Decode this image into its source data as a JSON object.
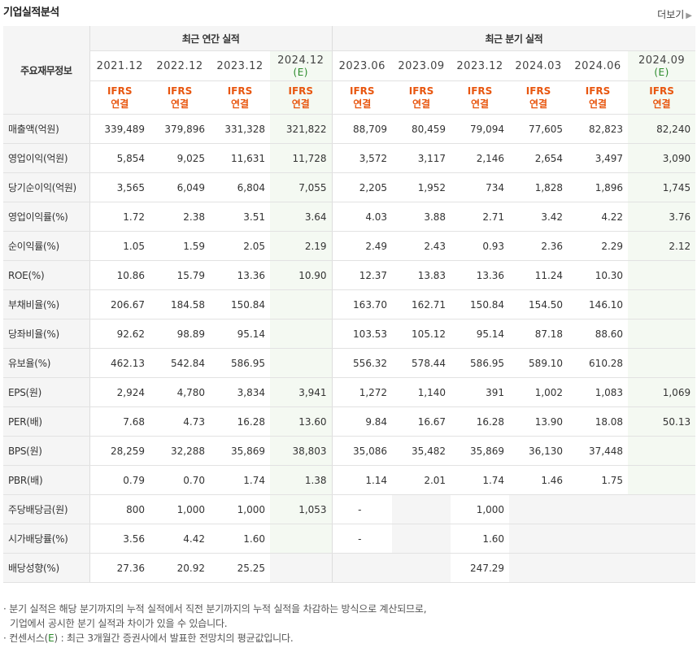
{
  "header": {
    "title": "기업실적분석",
    "more": "더보기"
  },
  "table": {
    "corner": "주요재무정보",
    "group_annual": "최근 연간 실적",
    "group_quarter": "최근 분기 실적",
    "periods": [
      {
        "p": "2021.12",
        "e": ""
      },
      {
        "p": "2022.12",
        "e": ""
      },
      {
        "p": "2023.12",
        "e": ""
      },
      {
        "p": "2024.12",
        "e": "(E)"
      },
      {
        "p": "2023.06",
        "e": ""
      },
      {
        "p": "2023.09",
        "e": ""
      },
      {
        "p": "2023.12",
        "e": ""
      },
      {
        "p": "2024.03",
        "e": ""
      },
      {
        "p": "2024.06",
        "e": ""
      },
      {
        "p": "2024.09",
        "e": "(E)"
      }
    ],
    "ifrs_top": "IFRS",
    "ifrs_bottom": "연결",
    "rows": [
      {
        "label": "매출액(억원)",
        "values": [
          "339,489",
          "379,896",
          "331,328",
          "321,822",
          "88,709",
          "80,459",
          "79,094",
          "77,605",
          "82,823",
          "82,240"
        ]
      },
      {
        "label": "영업이익(억원)",
        "values": [
          "5,854",
          "9,025",
          "11,631",
          "11,728",
          "3,572",
          "3,117",
          "2,146",
          "2,654",
          "3,497",
          "3,090"
        ]
      },
      {
        "label": "당기순이익(억원)",
        "values": [
          "3,565",
          "6,049",
          "6,804",
          "7,055",
          "2,205",
          "1,952",
          "734",
          "1,828",
          "1,896",
          "1,745"
        ]
      },
      {
        "label": "영업이익률(%)",
        "values": [
          "1.72",
          "2.38",
          "3.51",
          "3.64",
          "4.03",
          "3.88",
          "2.71",
          "3.42",
          "4.22",
          "3.76"
        ]
      },
      {
        "label": "순이익률(%)",
        "values": [
          "1.05",
          "1.59",
          "2.05",
          "2.19",
          "2.49",
          "2.43",
          "0.93",
          "2.36",
          "2.29",
          "2.12"
        ]
      },
      {
        "label": "ROE(%)",
        "values": [
          "10.86",
          "15.79",
          "13.36",
          "10.90",
          "12.37",
          "13.83",
          "13.36",
          "11.24",
          "10.30",
          ""
        ]
      },
      {
        "label": "부채비율(%)",
        "values": [
          "206.67",
          "184.58",
          "150.84",
          "",
          "163.70",
          "162.71",
          "150.84",
          "154.50",
          "146.10",
          ""
        ]
      },
      {
        "label": "당좌비율(%)",
        "values": [
          "92.62",
          "98.89",
          "95.14",
          "",
          "103.53",
          "105.12",
          "95.14",
          "87.18",
          "88.60",
          ""
        ]
      },
      {
        "label": "유보율(%)",
        "values": [
          "462.13",
          "542.84",
          "586.95",
          "",
          "556.32",
          "578.44",
          "586.95",
          "589.10",
          "610.28",
          ""
        ]
      },
      {
        "label": "EPS(원)",
        "values": [
          "2,924",
          "4,780",
          "3,834",
          "3,941",
          "1,272",
          "1,140",
          "391",
          "1,002",
          "1,083",
          "1,069"
        ]
      },
      {
        "label": "PER(배)",
        "values": [
          "7.68",
          "4.73",
          "16.28",
          "13.60",
          "9.84",
          "16.67",
          "16.28",
          "13.90",
          "18.08",
          "50.13"
        ]
      },
      {
        "label": "BPS(원)",
        "values": [
          "28,259",
          "32,288",
          "35,869",
          "38,803",
          "35,086",
          "35,482",
          "35,869",
          "36,130",
          "37,448",
          ""
        ]
      },
      {
        "label": "PBR(배)",
        "values": [
          "0.79",
          "0.70",
          "1.74",
          "1.38",
          "1.14",
          "2.01",
          "1.74",
          "1.46",
          "1.75",
          ""
        ]
      },
      {
        "label": "주당배당금(원)",
        "values": [
          "800",
          "1,000",
          "1,000",
          "1,053",
          "-",
          "",
          "1,000",
          "",
          "",
          ""
        ]
      },
      {
        "label": "시가배당률(%)",
        "values": [
          "3.56",
          "4.42",
          "1.60",
          "",
          "-",
          "",
          "1.60",
          "",
          "",
          ""
        ]
      },
      {
        "label": "배당성향(%)",
        "values": [
          "27.36",
          "20.92",
          "25.25",
          "",
          "",
          "",
          "247.29",
          "",
          "",
          ""
        ]
      }
    ]
  },
  "notes": {
    "line1": "· 분기 실적은 해당 분기까지의 누적 실적에서 직전 분기까지의 누적 실적을 차감하는 방식으로 계산되므로,",
    "line2": "기업에서 공시한 분기 실적과 차이가 있을 수 있습니다.",
    "line3a": "· 컨센서스(",
    "line3e": "E",
    "line3b": ") : 최근 3개월간 증권사에서 발표한 전망치의 평균값입니다."
  }
}
